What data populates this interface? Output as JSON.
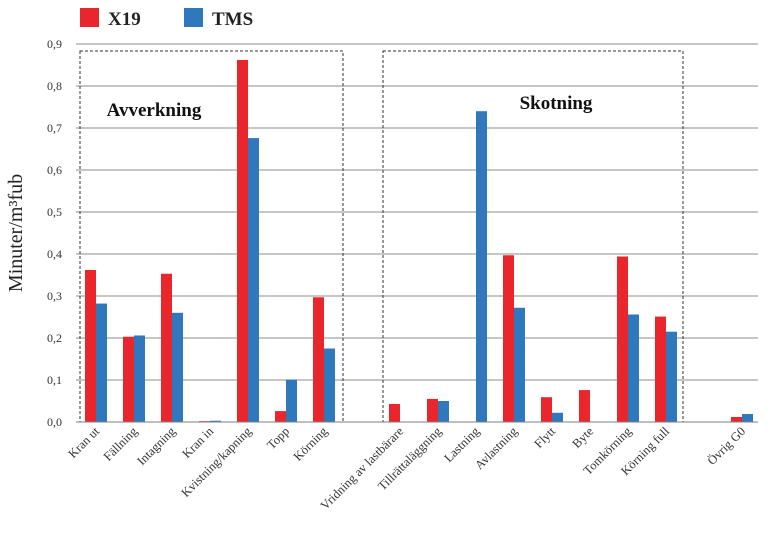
{
  "chart_data": {
    "type": "bar",
    "ylabel": "Minuter/m³fub",
    "ylim": [
      0,
      0.9
    ],
    "yticks": [
      "0,0",
      "0,1",
      "0,2",
      "0,3",
      "0,4",
      "0,5",
      "0,6",
      "0,7",
      "0,8",
      "0,9"
    ],
    "grid": true,
    "legend_position": "top-left",
    "categories": [
      "Kran ut",
      "Fällning",
      "Intagning",
      "Kran in",
      "Kvistning/kapning",
      "Topp",
      "Körning",
      "Vridning av lastbärare",
      "Tillrättaläggning",
      "Lastning",
      "Avlastning",
      "Flytt",
      "Byte",
      "Tomkörning",
      "Körning full",
      "Övrig G0"
    ],
    "series": [
      {
        "name": "X19",
        "color": "#e8262c",
        "values": [
          0.362,
          0.203,
          0.353,
          0.002,
          0.862,
          0.026,
          0.297,
          0.043,
          0.055,
          0.0,
          0.397,
          0.059,
          0.076,
          0.394,
          0.251,
          0.012
        ]
      },
      {
        "name": "TMS",
        "color": "#2f78bd",
        "values": [
          0.282,
          0.206,
          0.26,
          0.003,
          0.676,
          0.101,
          0.175,
          0.0,
          0.05,
          0.74,
          0.272,
          0.022,
          0.0,
          0.256,
          0.215,
          0.019
        ]
      }
    ],
    "groups": [
      {
        "label": "Avverkning"
      },
      {
        "label": "Skotning"
      }
    ]
  }
}
